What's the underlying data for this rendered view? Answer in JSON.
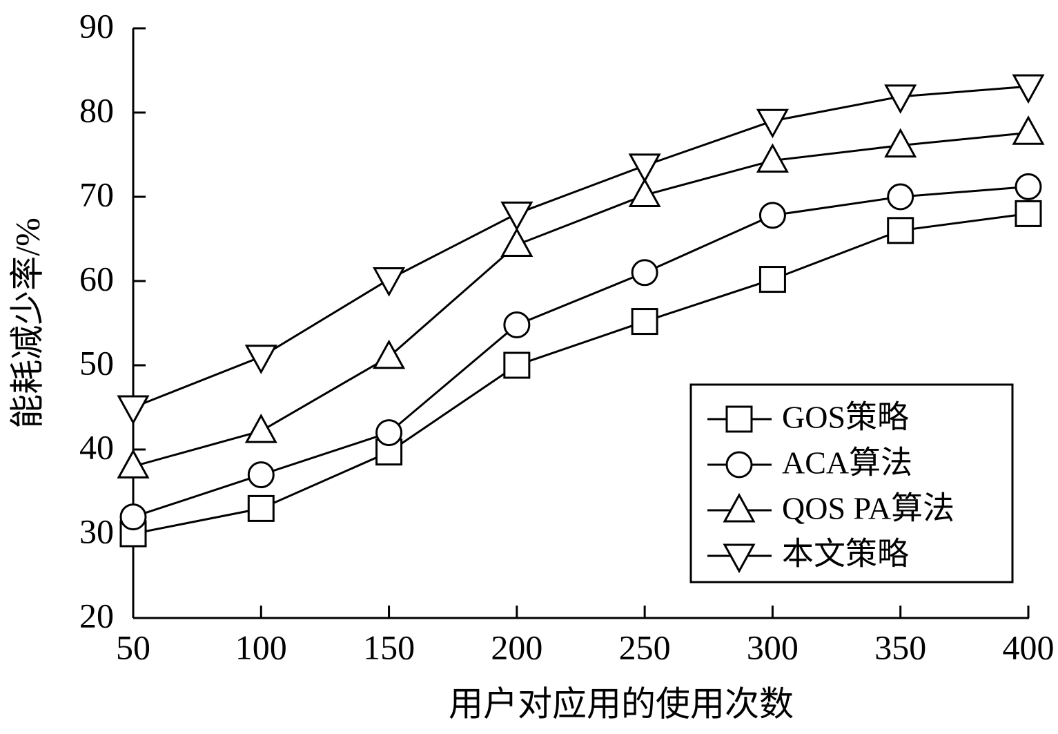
{
  "chart_data": {
    "type": "line",
    "x_label": "用户对应用的使用次数",
    "y_label": "能耗减少率/%",
    "x": [
      50,
      100,
      150,
      200,
      250,
      300,
      350,
      400
    ],
    "xlim": [
      50,
      400
    ],
    "xticks": [
      50,
      100,
      150,
      200,
      250,
      300,
      350,
      400
    ],
    "ylim": [
      20,
      90
    ],
    "yticks": [
      20,
      30,
      40,
      50,
      60,
      70,
      80,
      90
    ],
    "legend": "lower right",
    "series": [
      {
        "name": "GOS策略",
        "color": "#000000",
        "marker": "square",
        "values": [
          30,
          33,
          39.7,
          50,
          55.2,
          60.2,
          66,
          68
        ]
      },
      {
        "name": "ACA算法",
        "color": "#000000",
        "marker": "circle",
        "values": [
          32,
          37,
          42,
          54.8,
          61,
          67.8,
          70,
          71.2
        ]
      },
      {
        "name": "QOS PA算法",
        "color": "#000000",
        "marker": "triangle-up",
        "values": [
          38,
          42.2,
          51,
          64.3,
          70.2,
          74.3,
          76.1,
          77.6
        ]
      },
      {
        "name": "本文策略",
        "color": "#000000",
        "marker": "triangle-down",
        "values": [
          45,
          51,
          60.2,
          68,
          73.7,
          79,
          81.9,
          83.1
        ]
      }
    ]
  }
}
